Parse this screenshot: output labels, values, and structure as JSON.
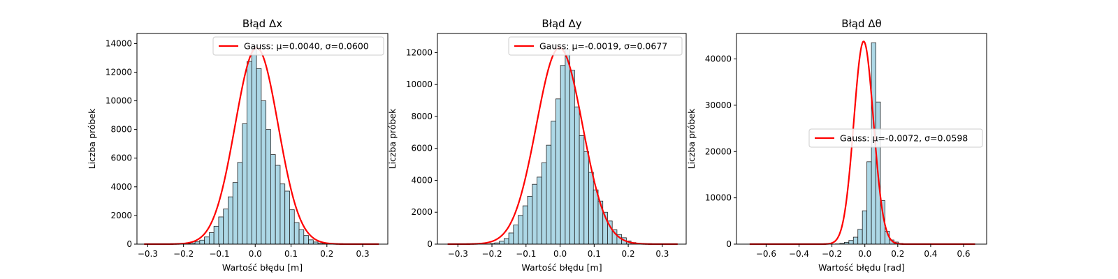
{
  "chart_data": [
    {
      "type": "bar",
      "title": "Błąd Δx",
      "xlabel": "Wartość błędu [m]",
      "ylabel": "Liczba próbek",
      "xlim": [
        -0.33,
        0.37
      ],
      "ylim": [
        0,
        14700
      ],
      "xticks": [
        -0.3,
        -0.2,
        -0.1,
        0.0,
        0.1,
        0.2,
        0.3
      ],
      "xtick_labels": [
        "−0.3",
        "−0.2",
        "−0.1",
        "0.0",
        "0.1",
        "0.2",
        "0.3"
      ],
      "yticks": [
        0,
        2000,
        4000,
        6000,
        8000,
        10000,
        12000,
        14000
      ],
      "ytick_labels": [
        "0",
        "2000",
        "4000",
        "6000",
        "8000",
        "10000",
        "12000",
        "14000"
      ],
      "bin_start": -0.3,
      "bin_width": 0.0132,
      "values": [
        0,
        0,
        0,
        0,
        0,
        0,
        10,
        20,
        40,
        80,
        160,
        280,
        500,
        800,
        1250,
        1900,
        2450,
        3300,
        4300,
        5700,
        8400,
        12750,
        13700,
        12250,
        10000,
        8000,
        6250,
        5500,
        4200,
        3700,
        2400,
        1500,
        1000,
        600,
        300,
        150,
        60,
        25,
        10,
        5,
        0,
        0,
        0,
        0,
        0,
        0,
        0,
        0,
        0,
        0
      ],
      "fit": {
        "mu": 0.004,
        "sigma": 0.06,
        "peak": 13700,
        "x_range": [
          -0.31,
          0.345
        ]
      },
      "legend": {
        "label": "Gauss: μ=0.0040, σ=0.0600",
        "position": "top-right"
      },
      "colors": {
        "bar": "#add8e6",
        "bar_edge": "#222222",
        "fit": "#ff0000"
      }
    },
    {
      "type": "bar",
      "title": "Błąd Δy",
      "xlabel": "Wartość błędu [m]",
      "ylabel": "Liczba próbek",
      "xlim": [
        -0.36,
        0.37
      ],
      "ylim": [
        0,
        13200
      ],
      "xticks": [
        -0.3,
        -0.2,
        -0.1,
        0.0,
        0.1,
        0.2,
        0.3
      ],
      "xtick_labels": [
        "−0.3",
        "−0.2",
        "−0.1",
        "0.0",
        "0.1",
        "0.2",
        "0.3"
      ],
      "yticks": [
        0,
        2000,
        4000,
        6000,
        8000,
        10000,
        12000
      ],
      "ytick_labels": [
        "0",
        "2000",
        "4000",
        "6000",
        "8000",
        "10000",
        "12000"
      ],
      "bin_start": -0.33,
      "bin_width": 0.0138,
      "values": [
        0,
        0,
        0,
        0,
        0,
        0,
        0,
        0,
        10,
        30,
        80,
        180,
        350,
        700,
        1200,
        1800,
        2400,
        3000,
        3750,
        4200,
        5100,
        6200,
        7700,
        9100,
        11200,
        12200,
        10900,
        8600,
        6800,
        5800,
        4500,
        3400,
        2700,
        2000,
        1450,
        900,
        600,
        400,
        200,
        100,
        50,
        20,
        10,
        0,
        0,
        0,
        0,
        0,
        0,
        0
      ],
      "fit": {
        "mu": -0.0019,
        "sigma": 0.0677,
        "peak": 12300,
        "x_range": [
          -0.33,
          0.345
        ]
      },
      "legend": {
        "label": "Gauss: μ=-0.0019, σ=0.0677",
        "position": "top-right"
      },
      "colors": {
        "bar": "#add8e6",
        "bar_edge": "#222222",
        "fit": "#ff0000"
      }
    },
    {
      "type": "bar",
      "title": "Błąd Δθ",
      "xlabel": "Wartość błędu [rad]",
      "ylabel": "Liczba próbek",
      "xlim": [
        -0.78,
        0.74
      ],
      "ylim": [
        0,
        45500
      ],
      "xticks": [
        -0.6,
        -0.4,
        -0.2,
        0.0,
        0.2,
        0.4,
        0.6
      ],
      "xtick_labels": [
        "−0.6",
        "−0.4",
        "−0.2",
        "0.0",
        "0.2",
        "0.4",
        "0.6"
      ],
      "yticks": [
        0,
        10000,
        20000,
        30000,
        40000
      ],
      "ytick_labels": [
        "0",
        "10000",
        "20000",
        "30000",
        "40000"
      ],
      "bin_start": -0.7,
      "bin_width": 0.0274,
      "values": [
        0,
        0,
        0,
        0,
        0,
        0,
        0,
        0,
        0,
        0,
        0,
        0,
        0,
        0,
        0,
        0,
        0,
        0,
        0,
        50,
        150,
        400,
        800,
        1500,
        3200,
        7200,
        17800,
        43500,
        30700,
        9400,
        2800,
        900,
        450,
        150,
        50,
        0,
        0,
        0,
        0,
        0,
        0,
        0,
        0,
        0,
        0,
        0,
        0,
        0,
        0,
        0
      ],
      "fit": {
        "mu": -0.0072,
        "sigma": 0.0598,
        "peak": 43800,
        "x_range": [
          -0.7,
          0.67
        ]
      },
      "legend": {
        "label": "Gauss: μ=-0.0072, σ=0.0598",
        "position": "center-right"
      },
      "colors": {
        "bar": "#add8e6",
        "bar_edge": "#222222",
        "fit": "#ff0000"
      }
    }
  ]
}
